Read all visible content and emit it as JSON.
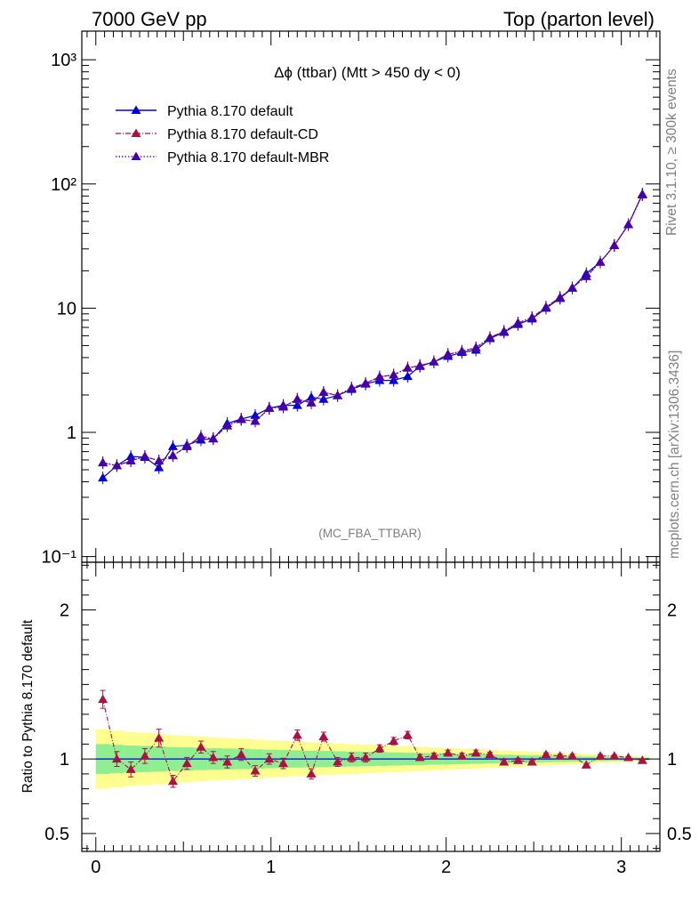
{
  "header": {
    "left": "7000 GeV pp",
    "right": "Top (parton level)"
  },
  "side_texts": {
    "upper": "Rivet 3.1.10, ≥ 300k events",
    "lower": "mcplots.cern.ch [arXiv:1306.3436]"
  },
  "chart_data": {
    "type": "line",
    "title": "Δϕ (ttbar) (Mtt > 450 dy < 0)",
    "analysis_label": "(MC_FBA_TTBAR)",
    "yscale": "log",
    "xlim": [
      -0.08,
      3.22
    ],
    "ylim": [
      0.09,
      1700
    ],
    "xticks": [
      "0",
      "1",
      "2",
      "3"
    ],
    "yticks": [
      "10⁻¹",
      "1",
      "10",
      "10²",
      "10³"
    ],
    "legend_position": "top-left",
    "series": [
      {
        "name": "Pythia 8.170 default",
        "color": "#0000dd",
        "line_style": "solid",
        "x": [
          0.04,
          0.12,
          0.2,
          0.28,
          0.36,
          0.44,
          0.52,
          0.6,
          0.67,
          0.75,
          0.83,
          0.91,
          0.99,
          1.07,
          1.15,
          1.23,
          1.3,
          1.38,
          1.46,
          1.54,
          1.62,
          1.7,
          1.78,
          1.85,
          1.93,
          2.01,
          2.09,
          2.17,
          2.25,
          2.33,
          2.41,
          2.49,
          2.57,
          2.65,
          2.72,
          2.8,
          2.88,
          2.96,
          3.04,
          3.12
        ],
        "y": [
          0.43,
          0.54,
          0.64,
          0.63,
          0.52,
          0.77,
          0.79,
          0.87,
          0.89,
          1.18,
          1.28,
          1.37,
          1.57,
          1.65,
          1.65,
          1.92,
          1.85,
          1.98,
          2.22,
          2.45,
          2.62,
          2.62,
          2.82,
          3.4,
          3.7,
          4.1,
          4.4,
          4.6,
          5.7,
          6.4,
          7.4,
          8.2,
          10.0,
          12.0,
          14.5,
          19.0,
          23.5,
          32.0,
          47.0,
          83.0
        ]
      },
      {
        "name": "Pythia 8.170 default-CD",
        "color": "#aa1144",
        "line_style": "dash-dot",
        "x": [
          0.04,
          0.12,
          0.2,
          0.28,
          0.36,
          0.44,
          0.52,
          0.6,
          0.67,
          0.75,
          0.83,
          0.91,
          0.99,
          1.07,
          1.15,
          1.23,
          1.3,
          1.38,
          1.46,
          1.54,
          1.62,
          1.7,
          1.78,
          1.85,
          1.93,
          2.01,
          2.09,
          2.17,
          2.25,
          2.33,
          2.41,
          2.49,
          2.57,
          2.65,
          2.72,
          2.8,
          2.88,
          2.96,
          3.04,
          3.12
        ],
        "y": [
          0.57,
          0.54,
          0.59,
          0.64,
          0.59,
          0.65,
          0.77,
          0.93,
          0.89,
          1.13,
          1.27,
          1.23,
          1.56,
          1.6,
          1.85,
          1.73,
          2.1,
          1.98,
          2.28,
          2.48,
          2.8,
          2.9,
          3.3,
          3.45,
          3.7,
          4.25,
          4.5,
          4.8,
          5.8,
          6.5,
          7.6,
          8.4,
          10.2,
          12.2,
          14.6,
          18.0,
          23.5,
          32.0,
          47.0,
          82.0
        ]
      },
      {
        "name": "Pythia 8.170 default-MBR",
        "color": "#4400aa",
        "line_style": "dotted",
        "x": [
          0.04,
          0.12,
          0.2,
          0.28,
          0.36,
          0.44,
          0.52,
          0.6,
          0.67,
          0.75,
          0.83,
          0.91,
          0.99,
          1.07,
          1.15,
          1.23,
          1.3,
          1.38,
          1.46,
          1.54,
          1.62,
          1.7,
          1.78,
          1.85,
          1.93,
          2.01,
          2.09,
          2.17,
          2.25,
          2.33,
          2.41,
          2.49,
          2.57,
          2.65,
          2.72,
          2.8,
          2.88,
          2.96,
          3.04,
          3.12
        ],
        "y": [
          0.57,
          0.54,
          0.59,
          0.64,
          0.59,
          0.65,
          0.77,
          0.93,
          0.89,
          1.13,
          1.27,
          1.23,
          1.56,
          1.6,
          1.85,
          1.73,
          2.1,
          1.98,
          2.28,
          2.48,
          2.8,
          2.9,
          3.3,
          3.45,
          3.7,
          4.25,
          4.5,
          4.8,
          5.8,
          6.5,
          7.6,
          8.4,
          10.2,
          12.2,
          14.6,
          18.0,
          23.5,
          32.0,
          47.0,
          82.0
        ]
      }
    ],
    "ratio": {
      "ylabel": "Ratio to Pythia 8.170 default",
      "ylim": [
        0.38,
        2.32
      ],
      "yticks": [
        "0.5",
        "1",
        "2"
      ],
      "reference_band": {
        "x_edges": [
          0.0,
          0.08,
          0.16,
          0.24,
          0.32,
          0.4,
          0.48,
          0.56,
          0.64,
          0.72,
          0.8,
          0.88,
          0.96,
          1.04,
          1.11,
          1.19,
          1.27,
          1.35,
          1.43,
          1.51,
          1.59,
          1.67,
          1.75,
          1.82,
          1.9,
          1.98,
          2.06,
          2.14,
          2.22,
          2.3,
          2.38,
          2.46,
          2.54,
          2.61,
          2.69,
          2.77,
          2.85,
          2.93,
          3.01,
          3.09,
          3.16
        ],
        "inner_halfwidth": [
          0.1,
          0.095,
          0.09,
          0.088,
          0.085,
          0.08,
          0.078,
          0.075,
          0.072,
          0.07,
          0.068,
          0.065,
          0.062,
          0.06,
          0.058,
          0.056,
          0.054,
          0.052,
          0.05,
          0.048,
          0.046,
          0.044,
          0.042,
          0.04,
          0.038,
          0.036,
          0.034,
          0.032,
          0.03,
          0.028,
          0.026,
          0.024,
          0.022,
          0.02,
          0.018,
          0.016,
          0.014,
          0.012,
          0.01,
          0.008
        ],
        "outer_halfwidth": [
          0.2,
          0.19,
          0.18,
          0.176,
          0.17,
          0.16,
          0.156,
          0.15,
          0.144,
          0.14,
          0.136,
          0.13,
          0.124,
          0.12,
          0.116,
          0.112,
          0.108,
          0.104,
          0.1,
          0.096,
          0.092,
          0.088,
          0.084,
          0.08,
          0.076,
          0.072,
          0.068,
          0.064,
          0.06,
          0.056,
          0.052,
          0.048,
          0.044,
          0.04,
          0.036,
          0.032,
          0.028,
          0.024,
          0.02,
          0.016
        ],
        "inner_color": "#8fee8f",
        "outer_color": "#ffff8f"
      },
      "series": [
        {
          "name": "Pythia 8.170 default-CD",
          "color": "#aa1144",
          "x": [
            0.04,
            0.12,
            0.2,
            0.28,
            0.36,
            0.44,
            0.52,
            0.6,
            0.67,
            0.75,
            0.83,
            0.91,
            0.99,
            1.07,
            1.15,
            1.23,
            1.3,
            1.38,
            1.46,
            1.54,
            1.62,
            1.7,
            1.78,
            1.85,
            1.93,
            2.01,
            2.09,
            2.17,
            2.25,
            2.33,
            2.41,
            2.49,
            2.57,
            2.65,
            2.72,
            2.8,
            2.88,
            2.96,
            3.04,
            3.12
          ],
          "y": [
            1.4,
            1.0,
            0.93,
            1.02,
            1.14,
            0.85,
            0.97,
            1.08,
            1.01,
            0.98,
            1.03,
            0.92,
            1.0,
            0.97,
            1.16,
            0.9,
            1.15,
            0.98,
            1.01,
            1.01,
            1.07,
            1.12,
            1.16,
            1.01,
            1.02,
            1.04,
            1.02,
            1.04,
            1.03,
            0.98,
            0.99,
            0.98,
            1.03,
            1.02,
            1.02,
            0.96,
            1.02,
            1.02,
            1.01,
            0.99
          ],
          "err": [
            0.06,
            0.05,
            0.05,
            0.05,
            0.06,
            0.04,
            0.04,
            0.04,
            0.04,
            0.04,
            0.04,
            0.035,
            0.035,
            0.035,
            0.035,
            0.035,
            0.03,
            0.03,
            0.03,
            0.03,
            0.025,
            0.025,
            0.025,
            0.02,
            0.02,
            0.02,
            0.02,
            0.02,
            0.015,
            0.015,
            0.015,
            0.015,
            0.012,
            0.012,
            0.012,
            0.01,
            0.01,
            0.008,
            0.006,
            0.005
          ]
        }
      ]
    }
  }
}
